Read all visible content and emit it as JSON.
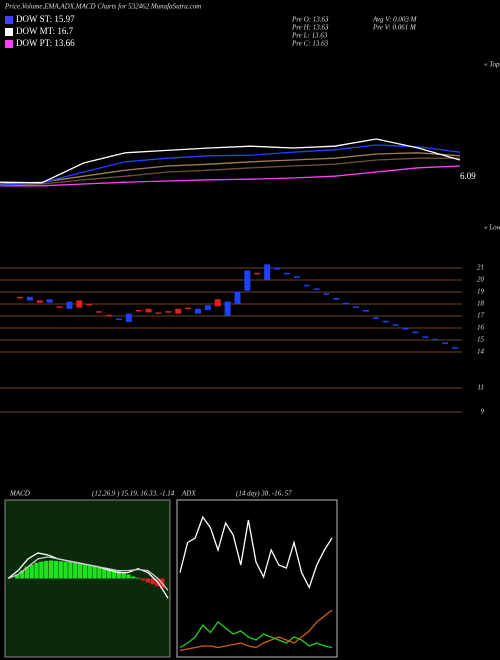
{
  "header": {
    "title": "Price,Volume,EMA,ADX,MACD Charts for 532462 MunafaSutra.com"
  },
  "legend": [
    {
      "label": "DOW ST: 15.97",
      "color": "#4040ff"
    },
    {
      "label": "DOW MT: 16.7",
      "color": "#ffffff"
    },
    {
      "label": "DOW PT: 13.66",
      "color": "#ff40ff"
    }
  ],
  "info": [
    "Pre  O: 13.63",
    "Pre  H: 13.63",
    "Pre  L: 13.63",
    "Pre  C: 13.63",
    "Avg V: 0.003 M",
    "Pre  V: 0.061 M"
  ],
  "labels": {
    "tops": "« Tops",
    "lows": "« Lows",
    "last": "6.09"
  },
  "chart_data": [
    {
      "type": "line",
      "ylim": [
        0,
        10
      ],
      "series": [
        {
          "color": "#705030",
          "values": [
            0.8,
            1.0,
            1.7,
            2.3,
            3.0,
            3.3,
            3.7,
            4.0,
            4.3,
            5.0,
            5.3,
            5.3
          ]
        },
        {
          "color": "#a08050",
          "values": [
            1.0,
            1.3,
            2.3,
            3.3,
            4.0,
            4.3,
            4.7,
            5.0,
            5.3,
            6.0,
            6.2,
            5.7
          ]
        },
        {
          "color": "#ff40ff",
          "values": [
            0.7,
            0.7,
            1.0,
            1.3,
            1.5,
            1.7,
            1.8,
            2.0,
            2.3,
            3.0,
            3.7,
            4.0
          ]
        },
        {
          "color": "#2040ff",
          "values": [
            0.8,
            1.2,
            3.0,
            4.7,
            5.3,
            5.7,
            5.8,
            6.3,
            6.7,
            7.5,
            7.2,
            6.3
          ]
        },
        {
          "color": "#ffffff",
          "values": [
            1.3,
            1.2,
            4.5,
            6.2,
            6.6,
            7.0,
            7.3,
            7.0,
            7.3,
            8.5,
            7.0,
            5.0
          ]
        }
      ]
    },
    {
      "type": "candlestick",
      "ylim": [
        8.5,
        22.5
      ],
      "yticks": [
        21,
        20,
        19,
        18,
        17,
        16,
        15,
        14,
        11,
        9
      ],
      "up_color": "#2040ff",
      "down_color": "#e02020",
      "grid_color": "#8a5a20",
      "open": [
        18.6,
        18.3,
        18.3,
        18.1,
        17.8,
        17.6,
        18.3,
        18.0,
        17.4,
        17.1,
        16.8,
        16.5,
        17.5,
        17.6,
        17.3,
        17.4,
        17.6,
        17.7,
        17.2,
        17.5,
        18.4,
        17.0,
        18.0,
        19.1,
        20.6,
        20.0,
        21.0,
        20.6,
        20.3,
        19.6,
        19.3,
        18.9,
        18.5,
        18.1,
        17.8,
        17.5,
        16.9,
        16.6,
        16.3,
        16.0,
        15.7,
        15.3,
        15.1,
        14.8,
        14.4
      ],
      "close": [
        18.5,
        18.6,
        18.1,
        18.4,
        17.7,
        18.2,
        17.7,
        17.9,
        17.3,
        17.0,
        16.8,
        17.2,
        17.4,
        17.3,
        17.2,
        17.3,
        17.2,
        17.6,
        17.6,
        17.9,
        17.8,
        18.2,
        19.0,
        20.8,
        20.5,
        21.3,
        21.0,
        20.6,
        20.3,
        19.6,
        19.3,
        18.9,
        18.5,
        18.1,
        17.8,
        17.5,
        16.9,
        16.6,
        16.3,
        16.0,
        15.7,
        15.3,
        15.1,
        14.8,
        14.4
      ]
    },
    {
      "type": "macd",
      "title": "MACD",
      "subtitle": "(12,26,9 ) 15.19, 16.33, -1.14",
      "ylim": [
        -20,
        20
      ],
      "up_color": "#20e020",
      "down_color": "#e02020",
      "histogram": [
        1,
        2,
        3,
        3.5,
        4,
        4.3,
        4.5,
        4.6,
        4.5,
        4.4,
        4.3,
        4.2,
        4.0,
        3.9,
        3.7,
        3.5,
        3.3,
        3.0,
        2.8,
        2.5,
        2.2,
        2.0,
        1.5,
        1.0,
        0.5,
        0.2,
        -0.5,
        -1.0,
        -1.5,
        -2.0,
        -2.5
      ],
      "series": [
        {
          "color": "#ffffff",
          "values": [
            0,
            2,
            5,
            6.5,
            6,
            5,
            4.5,
            4,
            3.5,
            3,
            2.2,
            1.5,
            1.5,
            2.5,
            1.5,
            -1,
            -5
          ]
        },
        {
          "color": "#cccccc",
          "values": [
            0,
            1,
            3,
            5,
            5.5,
            5,
            4.5,
            4,
            3.5,
            3,
            2.5,
            2,
            2,
            2.3,
            2,
            0,
            -3
          ]
        }
      ]
    },
    {
      "type": "adx",
      "title": "ADX",
      "subtitle": "(14 day) 38, -16, 57",
      "ylim": [
        0,
        100
      ],
      "series": [
        {
          "color": "#ffffff",
          "values": [
            55,
            75,
            78,
            92,
            85,
            70,
            88,
            80,
            60,
            90,
            62,
            52,
            70,
            60,
            58,
            75,
            55,
            45,
            60,
            70,
            78
          ]
        },
        {
          "color": "#20d020",
          "values": [
            5,
            8,
            12,
            20,
            15,
            22,
            18,
            14,
            16,
            12,
            10,
            14,
            12,
            10,
            8,
            12,
            10,
            6,
            8,
            6,
            5
          ]
        },
        {
          "color": "#d06010",
          "values": [
            3,
            4,
            5,
            6,
            6,
            5,
            6,
            7,
            8,
            6,
            5,
            8,
            10,
            12,
            10,
            8,
            12,
            16,
            22,
            26,
            30
          ]
        }
      ]
    }
  ]
}
